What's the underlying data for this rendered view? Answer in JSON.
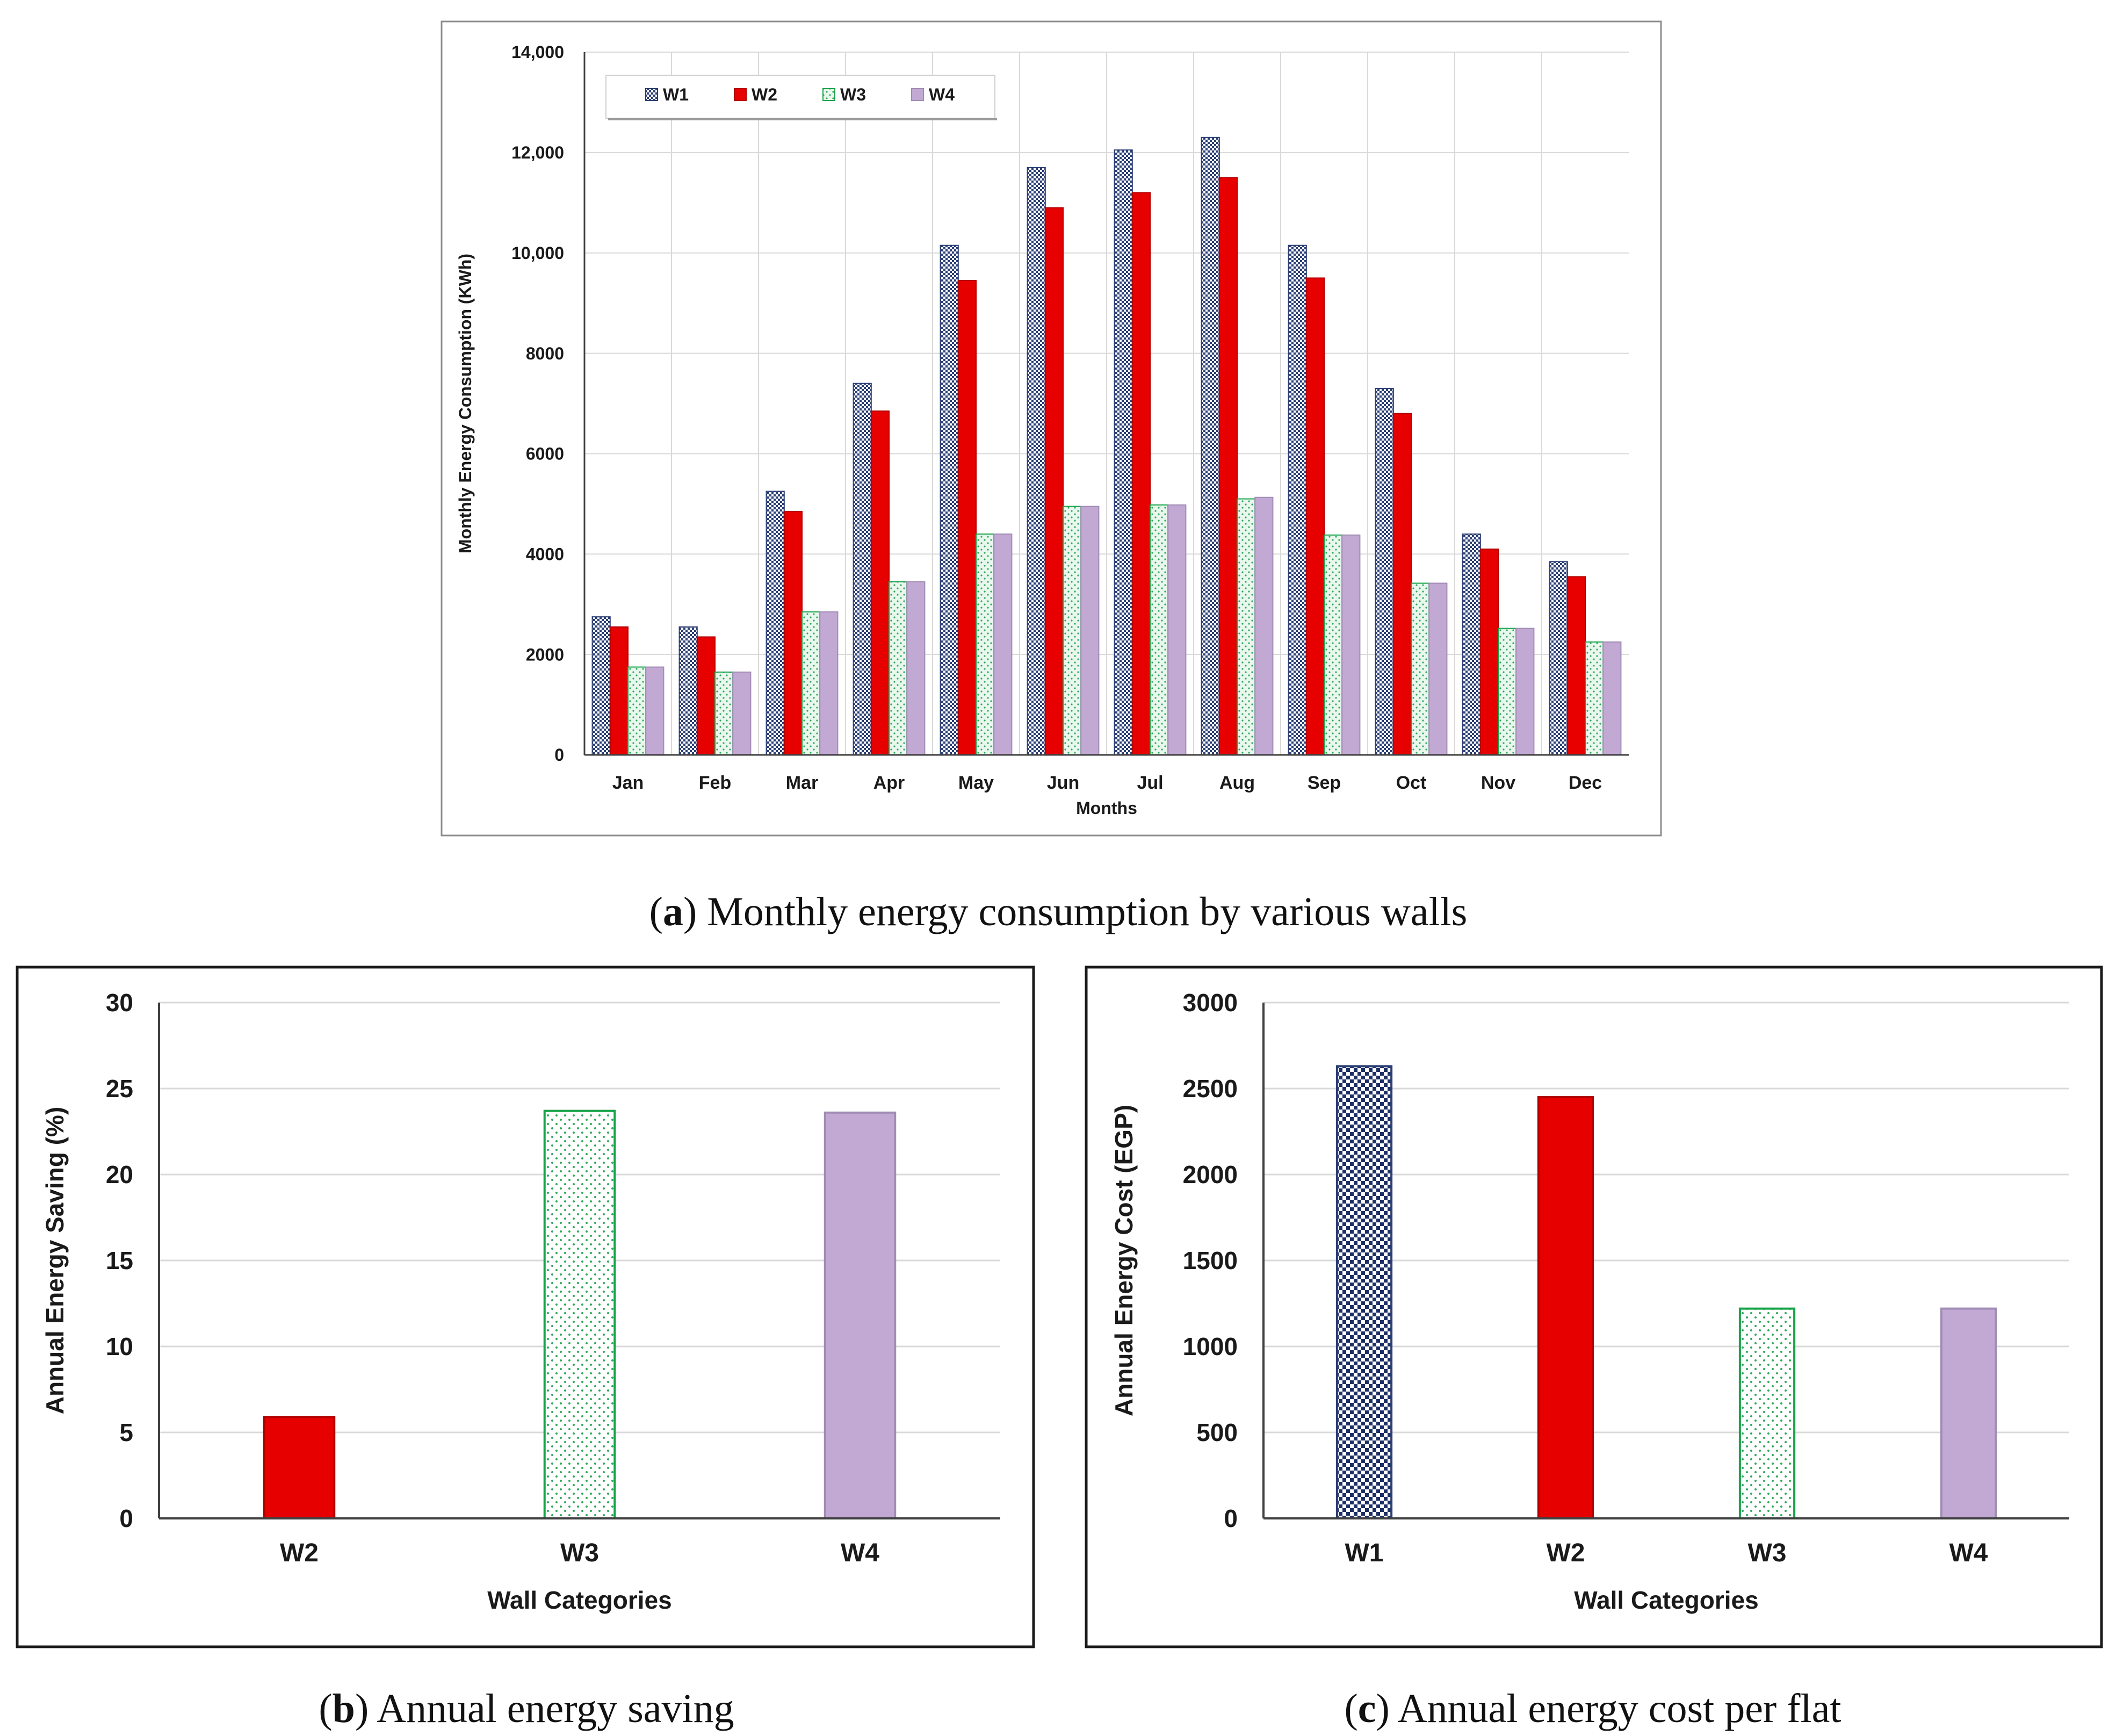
{
  "colors": {
    "W1": "#2b3f74",
    "W2": "#e60000",
    "W3": "#17a349",
    "W4": "#c2a9d3",
    "grid": "#d9d9d9",
    "axis": "#404040"
  },
  "chart_data": [
    {
      "id": "a",
      "type": "bar",
      "title": "",
      "xlabel": "Months",
      "ylabel": "Monthly Energy Consumption  (KWh)",
      "ylim": [
        0,
        14000
      ],
      "yticks": [
        0,
        2000,
        4000,
        6000,
        8000,
        10000,
        12000,
        14000
      ],
      "ytick_labels": [
        "0",
        "2000",
        "4000",
        "6000",
        "8000",
        "10,000",
        "12,000",
        "14,000"
      ],
      "categories": [
        "Jan",
        "Feb",
        "Mar",
        "Apr",
        "May",
        "Jun",
        "Jul",
        "Aug",
        "Sep",
        "Oct",
        "Nov",
        "Dec"
      ],
      "legend": {
        "placement": "top-left",
        "labels": [
          "W1",
          "W2",
          "W3",
          "W4"
        ]
      },
      "series": [
        {
          "name": "W1",
          "values": [
            2750,
            2550,
            5250,
            7400,
            10150,
            11700,
            12050,
            12300,
            10150,
            7300,
            4400,
            3850
          ]
        },
        {
          "name": "W2",
          "values": [
            2550,
            2350,
            4850,
            6850,
            9450,
            10900,
            11200,
            11500,
            9500,
            6800,
            4100,
            3550
          ]
        },
        {
          "name": "W3",
          "values": [
            1750,
            1650,
            2850,
            3450,
            4400,
            4950,
            4980,
            5100,
            4380,
            3420,
            2520,
            2250
          ]
        },
        {
          "name": "W4",
          "values": [
            1750,
            1650,
            2850,
            3450,
            4400,
            4950,
            4980,
            5130,
            4380,
            3420,
            2520,
            2250
          ]
        }
      ]
    },
    {
      "id": "b",
      "type": "bar",
      "title": "",
      "xlabel": "Wall Categories",
      "ylabel": "Annual Energy Saving (%)",
      "ylim": [
        0,
        30
      ],
      "yticks": [
        0,
        5,
        10,
        15,
        20,
        25,
        30
      ],
      "ytick_labels": [
        "0",
        "5",
        "10",
        "15",
        "20",
        "25",
        "30"
      ],
      "categories": [
        "W2",
        "W3",
        "W4"
      ],
      "values": [
        5.9,
        23.7,
        23.6
      ]
    },
    {
      "id": "c",
      "type": "bar",
      "title": "",
      "xlabel": "Wall Categories",
      "ylabel": "Annual Energy Cost (EGP)",
      "ylim": [
        0,
        3000
      ],
      "yticks": [
        0,
        500,
        1000,
        1500,
        2000,
        2500,
        3000
      ],
      "ytick_labels": [
        "0",
        "500",
        "1000",
        "1500",
        "2000",
        "2500",
        "3000"
      ],
      "categories": [
        "W1",
        "W2",
        "W3",
        "W4"
      ],
      "values": [
        2630,
        2450,
        1220,
        1220
      ]
    }
  ],
  "captions": {
    "a": {
      "letter": "a",
      "text": ") Monthly energy consumption by various walls"
    },
    "b": {
      "letter": "b",
      "text": ") Annual energy saving"
    },
    "c": {
      "letter": "c",
      "text": ") Annual energy cost per flat"
    }
  }
}
